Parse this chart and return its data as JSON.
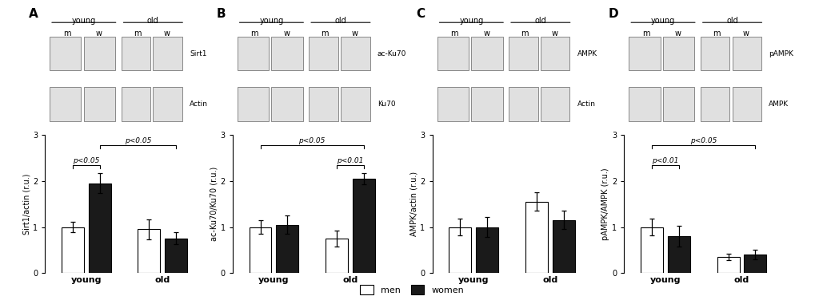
{
  "panels": [
    {
      "label": "A",
      "ylabel": "Sirt1/actin (r.u.)",
      "ylim": [
        0,
        3
      ],
      "yticks": [
        0,
        1,
        2,
        3
      ],
      "groups": [
        "young",
        "old"
      ],
      "bar_values": [
        [
          1.0,
          1.95
        ],
        [
          0.95,
          0.75
        ]
      ],
      "bar_errors": [
        [
          0.12,
          0.22
        ],
        [
          0.22,
          0.13
        ]
      ],
      "sig_within": [
        {
          "group_idx": 0,
          "label": "p<0.05",
          "y": 2.35
        }
      ],
      "sig_across": [
        {
          "from_gi": 0,
          "from_bi": 1,
          "to_gi": 1,
          "to_bi": 1,
          "label": "p<0.05",
          "y": 2.78
        }
      ],
      "blot_rows": [
        "Sirt1",
        "Actin"
      ]
    },
    {
      "label": "B",
      "ylabel": "ac-Ku70/Ku70 (r.u.)",
      "ylim": [
        0,
        3
      ],
      "yticks": [
        0,
        1,
        2,
        3
      ],
      "groups": [
        "young",
        "old"
      ],
      "bar_values": [
        [
          1.0,
          1.05
        ],
        [
          0.75,
          2.05
        ]
      ],
      "bar_errors": [
        [
          0.15,
          0.2
        ],
        [
          0.18,
          0.12
        ]
      ],
      "sig_within": [
        {
          "group_idx": 1,
          "label": "p<0.01",
          "y": 2.35
        }
      ],
      "sig_across": [
        {
          "from_gi": 0,
          "from_bi": 0,
          "to_gi": 1,
          "to_bi": 1,
          "label": "p<0.05",
          "y": 2.78
        }
      ],
      "blot_rows": [
        "ac-Ku70",
        "Ku70"
      ]
    },
    {
      "label": "C",
      "ylabel": "AMPK/actin (r.u.)",
      "ylim": [
        0,
        3
      ],
      "yticks": [
        0,
        1,
        2,
        3
      ],
      "groups": [
        "young",
        "old"
      ],
      "bar_values": [
        [
          1.0,
          1.0
        ],
        [
          1.55,
          1.15
        ]
      ],
      "bar_errors": [
        [
          0.18,
          0.22
        ],
        [
          0.2,
          0.2
        ]
      ],
      "sig_within": [],
      "sig_across": [],
      "blot_rows": [
        "AMPK",
        "Actin"
      ]
    },
    {
      "label": "D",
      "ylabel": "pAMPK/AMPK (r.u.)",
      "ylim": [
        0,
        3
      ],
      "yticks": [
        0,
        1,
        2,
        3
      ],
      "groups": [
        "young",
        "old"
      ],
      "bar_values": [
        [
          1.0,
          0.8
        ],
        [
          0.35,
          0.4
        ]
      ],
      "bar_errors": [
        [
          0.18,
          0.22
        ],
        [
          0.07,
          0.1
        ]
      ],
      "sig_within": [
        {
          "group_idx": 0,
          "label": "p<0.01",
          "y": 2.35
        }
      ],
      "sig_across": [
        {
          "from_gi": 0,
          "from_bi": 0,
          "to_gi": 1,
          "to_bi": 1,
          "label": "p<0.05",
          "y": 2.78
        }
      ],
      "blot_rows": [
        "pAMPK",
        "AMPK"
      ]
    }
  ],
  "colors": {
    "men": "#ffffff",
    "women": "#1a1a1a"
  },
  "bar_edge_color": "#000000",
  "bar_width": 0.28,
  "legend_labels": [
    "men",
    "women"
  ],
  "background_color": "#ffffff",
  "font_family": "Arial"
}
